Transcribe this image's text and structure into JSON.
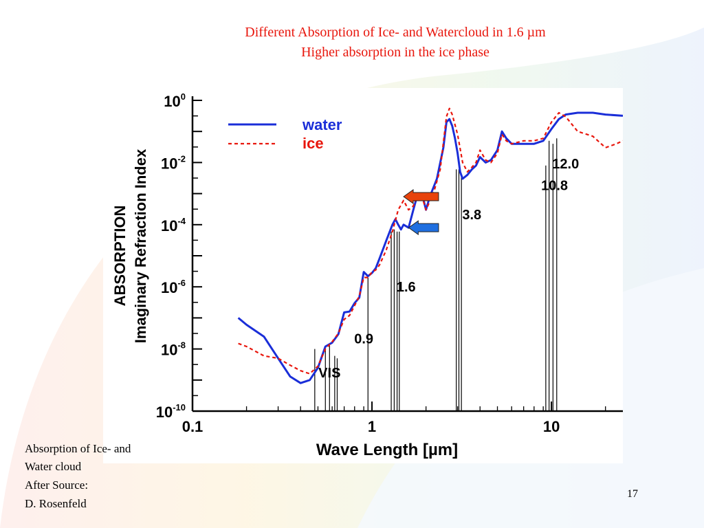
{
  "slide": {
    "title_line1": "Different Absorption of Ice- and Watercloud in 1.6 µm",
    "title_line2": "Higher absorption in  the ice phase",
    "caption_lines": [
      "Absorption of Ice- and",
      "Water cloud",
      "After Source:",
      "D. Rosenfeld"
    ],
    "page_number": "17"
  },
  "colors": {
    "title": "#e8160c",
    "water": "#1a2ed8",
    "ice": "#e8160c",
    "arrow_ice": "#e8430c",
    "arrow_water": "#1f6fe0"
  },
  "chart_data": {
    "type": "line",
    "xscale": "log",
    "yscale": "log",
    "xlim": [
      0.1,
      25
    ],
    "ylim": [
      1e-10,
      1
    ],
    "xlabel": "Wave Length [µm]",
    "ylabel_line1": "ABSORPTION",
    "ylabel_line2": "Imaginary Refraction Index",
    "x_ticks": [
      {
        "value": 0.1,
        "label": "0.1"
      },
      {
        "value": 1,
        "label": "1"
      },
      {
        "value": 10,
        "label": "10"
      }
    ],
    "y_ticks": [
      {
        "value": 1,
        "base": "10",
        "exp": "0"
      },
      {
        "value": 0.01,
        "base": "10",
        "exp": "-2"
      },
      {
        "value": 0.0001,
        "base": "10",
        "exp": "-4"
      },
      {
        "value": 1e-06,
        "base": "10",
        "exp": "-6"
      },
      {
        "value": 1e-08,
        "base": "10",
        "exp": "-8"
      },
      {
        "value": 1e-10,
        "base": "10",
        "exp": "-10"
      }
    ],
    "legend_position": "top-left",
    "series": [
      {
        "name": "water",
        "style": "solid",
        "points": [
          [
            0.18,
            1e-07
          ],
          [
            0.2,
            6e-08
          ],
          [
            0.25,
            2.5e-08
          ],
          [
            0.3,
            5e-09
          ],
          [
            0.35,
            1.3e-09
          ],
          [
            0.4,
            8e-10
          ],
          [
            0.45,
            1e-09
          ],
          [
            0.5,
            2.5e-09
          ],
          [
            0.55,
            1.2e-08
          ],
          [
            0.6,
            1.6e-08
          ],
          [
            0.65,
            3e-08
          ],
          [
            0.7,
            1.5e-07
          ],
          [
            0.75,
            1.6e-07
          ],
          [
            0.8,
            3e-07
          ],
          [
            0.85,
            4.5e-07
          ],
          [
            0.9,
            3e-06
          ],
          [
            0.95,
            2.2e-06
          ],
          [
            1.0,
            2.8e-06
          ],
          [
            1.05,
            4e-06
          ],
          [
            1.1,
            8e-06
          ],
          [
            1.2,
            3e-05
          ],
          [
            1.3,
            0.0001
          ],
          [
            1.35,
            0.00015
          ],
          [
            1.4,
            0.0001
          ],
          [
            1.45,
            7e-05
          ],
          [
            1.5,
            0.0001
          ],
          [
            1.6,
            8e-05
          ],
          [
            1.7,
            0.0003
          ],
          [
            1.8,
            0.001
          ],
          [
            1.9,
            0.001
          ],
          [
            2.0,
            0.0003
          ],
          [
            2.1,
            0.0008
          ],
          [
            2.3,
            0.003
          ],
          [
            2.5,
            0.03
          ],
          [
            2.6,
            0.2
          ],
          [
            2.7,
            0.25
          ],
          [
            2.8,
            0.15
          ],
          [
            2.9,
            0.06
          ],
          [
            3.0,
            0.02
          ],
          [
            3.1,
            0.005
          ],
          [
            3.2,
            0.003
          ],
          [
            3.4,
            0.004
          ],
          [
            3.6,
            0.006
          ],
          [
            3.8,
            0.008
          ],
          [
            4.0,
            0.015
          ],
          [
            4.3,
            0.01
          ],
          [
            4.6,
            0.012
          ],
          [
            5.0,
            0.025
          ],
          [
            5.3,
            0.1
          ],
          [
            5.6,
            0.06
          ],
          [
            6.0,
            0.04
          ],
          [
            7.0,
            0.04
          ],
          [
            8.0,
            0.04
          ],
          [
            9.0,
            0.05
          ],
          [
            10.0,
            0.12
          ],
          [
            11.0,
            0.25
          ],
          [
            12.0,
            0.35
          ],
          [
            14.0,
            0.4
          ],
          [
            17.0,
            0.4
          ],
          [
            20.0,
            0.35
          ],
          [
            25.0,
            0.32
          ]
        ]
      },
      {
        "name": "ice",
        "style": "dashed",
        "points": [
          [
            0.18,
            1.5e-08
          ],
          [
            0.2,
            1.2e-08
          ],
          [
            0.25,
            6e-09
          ],
          [
            0.3,
            5e-09
          ],
          [
            0.35,
            3e-09
          ],
          [
            0.4,
            2e-09
          ],
          [
            0.45,
            1.6e-09
          ],
          [
            0.5,
            2.8e-09
          ],
          [
            0.55,
            1e-08
          ],
          [
            0.6,
            1.7e-08
          ],
          [
            0.65,
            3.2e-08
          ],
          [
            0.7,
            9e-08
          ],
          [
            0.75,
            1.2e-07
          ],
          [
            0.8,
            2.5e-07
          ],
          [
            0.85,
            5e-07
          ],
          [
            0.9,
            2e-06
          ],
          [
            0.95,
            2e-06
          ],
          [
            1.0,
            3e-06
          ],
          [
            1.05,
            3.5e-06
          ],
          [
            1.1,
            5e-06
          ],
          [
            1.2,
            1.5e-05
          ],
          [
            1.3,
            6e-05
          ],
          [
            1.4,
            0.0003
          ],
          [
            1.5,
            0.0006
          ],
          [
            1.6,
            0.0003
          ],
          [
            1.7,
            0.0004
          ],
          [
            1.8,
            0.001
          ],
          [
            1.9,
            0.0008
          ],
          [
            2.0,
            0.0003
          ],
          [
            2.2,
            0.001
          ],
          [
            2.4,
            0.006
          ],
          [
            2.6,
            0.3
          ],
          [
            2.7,
            0.55
          ],
          [
            2.8,
            0.35
          ],
          [
            3.0,
            0.08
          ],
          [
            3.2,
            0.01
          ],
          [
            3.4,
            0.005
          ],
          [
            3.6,
            0.007
          ],
          [
            3.8,
            0.01
          ],
          [
            4.0,
            0.025
          ],
          [
            4.3,
            0.012
          ],
          [
            4.6,
            0.01
          ],
          [
            5.0,
            0.02
          ],
          [
            5.3,
            0.08
          ],
          [
            5.6,
            0.05
          ],
          [
            6.0,
            0.04
          ],
          [
            7.0,
            0.05
          ],
          [
            8.0,
            0.05
          ],
          [
            9.0,
            0.06
          ],
          [
            10.0,
            0.2
          ],
          [
            11.0,
            0.4
          ],
          [
            12.0,
            0.3
          ],
          [
            14.0,
            0.1
          ],
          [
            17.0,
            0.07
          ],
          [
            20.0,
            0.03
          ],
          [
            23.0,
            0.04
          ],
          [
            25.0,
            0.05
          ]
        ]
      }
    ],
    "band_groups": [
      {
        "label": "VIS",
        "label_at": [
          0.58,
          1.2e-09
        ],
        "lines": [
          {
            "x": 0.48,
            "top": 1e-08
          },
          {
            "x": 0.55,
            "top": 1.2e-08
          },
          {
            "x": 0.58,
            "top": 1.3e-08
          },
          {
            "x": 0.62,
            "top": 6e-09
          },
          {
            "x": 0.64,
            "top": 5e-09
          }
        ]
      },
      {
        "label": "0.9",
        "label_at": [
          0.9,
          1.5e-08
        ],
        "lines": [
          {
            "x": 0.95,
            "top": 2e-06
          }
        ]
      },
      {
        "label": "1.6",
        "label_at": [
          1.55,
          7e-07
        ],
        "lines": [
          {
            "x": 1.28,
            "top": 6e-05
          },
          {
            "x": 1.33,
            "top": 7e-05
          },
          {
            "x": 1.38,
            "top": 6e-05
          },
          {
            "x": 1.42,
            "top": 6e-05
          }
        ]
      },
      {
        "label": "3.8",
        "label_at": [
          3.6,
          0.00015
        ],
        "lines": [
          {
            "x": 2.95,
            "top": 0.006
          },
          {
            "x": 3.05,
            "top": 0.006
          },
          {
            "x": 3.15,
            "top": 0.004
          }
        ]
      },
      {
        "label": "10.8",
        "label_at": [
          10.4,
          0.0013
        ],
        "lines": [
          {
            "x": 9.3,
            "top": 0.008
          },
          {
            "x": 9.7,
            "top": 0.05
          }
        ]
      },
      {
        "label": "12.0",
        "label_at": [
          12.0,
          0.0065
        ],
        "lines": [
          {
            "x": 10.2,
            "top": 0.04
          },
          {
            "x": 10.7,
            "top": 0.06
          }
        ]
      }
    ],
    "annotations": [
      {
        "name": "ice-arrow",
        "color": "arrow_ice",
        "direction": "left",
        "tip": [
          1.5,
          0.0008
        ],
        "tail": [
          2.35,
          0.0008
        ]
      },
      {
        "name": "water-arrow",
        "color": "arrow_water",
        "direction": "left",
        "tip": [
          1.6,
          8e-05
        ],
        "tail": [
          2.35,
          8e-05
        ]
      }
    ]
  }
}
